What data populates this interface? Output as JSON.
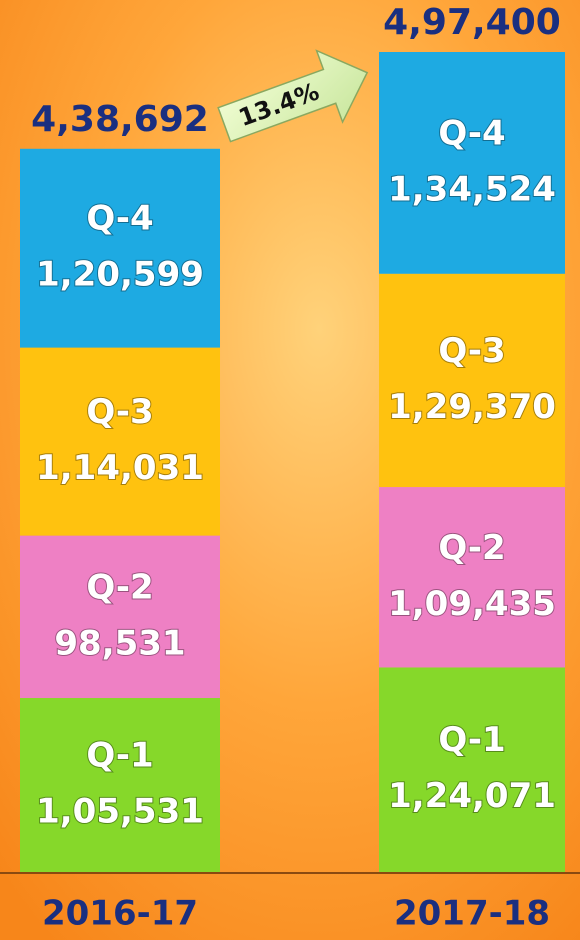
{
  "chart_data": {
    "type": "stacked_bar",
    "categories": [
      "2016-17",
      "2017-18"
    ],
    "series": [
      {
        "name": "Q-1",
        "color": "#86d82a",
        "values": [
          105531,
          124071
        ],
        "value_labels": [
          "1,05,531",
          "1,24,071"
        ]
      },
      {
        "name": "Q-2",
        "color": "#ee80c4",
        "values": [
          98531,
          109435
        ],
        "value_labels": [
          "98,531",
          "1,09,435"
        ]
      },
      {
        "name": "Q-3",
        "color": "#ffc20f",
        "values": [
          114031,
          129370
        ],
        "value_labels": [
          "1,14,031",
          "1,29,370"
        ]
      },
      {
        "name": "Q-4",
        "color": "#1eaae2",
        "values": [
          120599,
          134524
        ],
        "value_labels": [
          "1,20,599",
          "1,34,524"
        ]
      }
    ],
    "totals": [
      438692,
      497400
    ],
    "total_labels": [
      "4,38,692",
      "4,97,400"
    ],
    "annotation": "13.4%"
  }
}
